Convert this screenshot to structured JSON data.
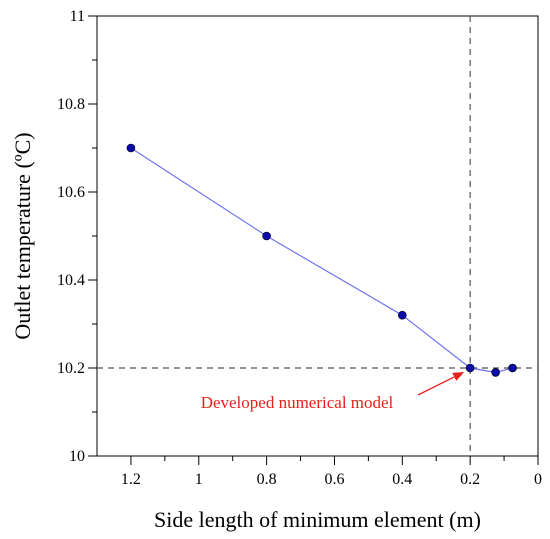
{
  "chart_data": {
    "type": "line",
    "title": "",
    "xlabel": "Side length of minimum element (m)",
    "ylabel": "Outlet temperature (ºC)",
    "xlim": [
      1.3,
      0
    ],
    "ylim": [
      10,
      11
    ],
    "x_reversed": true,
    "grid": false,
    "x_ticks": [
      1.2,
      1,
      0.8,
      0.6,
      0.4,
      0.2,
      0
    ],
    "x_tick_labels": [
      "1.2",
      "1",
      "0.8",
      "0.6",
      "0.4",
      "0.2",
      "0"
    ],
    "y_ticks": [
      10,
      10.2,
      10.4,
      10.6,
      10.8,
      11
    ],
    "y_tick_labels": [
      "10",
      "10.2",
      "10.4",
      "10.6",
      "10.8",
      "11"
    ],
    "series": [
      {
        "x": [
          1.2,
          0.8,
          0.4,
          0.2,
          0.125,
          0.075
        ],
        "y": [
          10.7,
          10.5,
          10.32,
          10.2,
          10.19,
          10.2
        ],
        "line_color": "#6f73f2",
        "marker_color": "#0b0ba8"
      }
    ],
    "reference_lines": [
      {
        "orientation": "horizontal",
        "value": 10.2,
        "style": "dashed",
        "color": "#555555"
      },
      {
        "orientation": "vertical",
        "value": 0.2,
        "style": "dashed",
        "color": "#555555"
      }
    ],
    "annotations": [
      {
        "text": "Developed numerical model",
        "color": "#e8201c",
        "arrow_to": {
          "x": 0.2,
          "y": 10.2
        }
      }
    ]
  }
}
